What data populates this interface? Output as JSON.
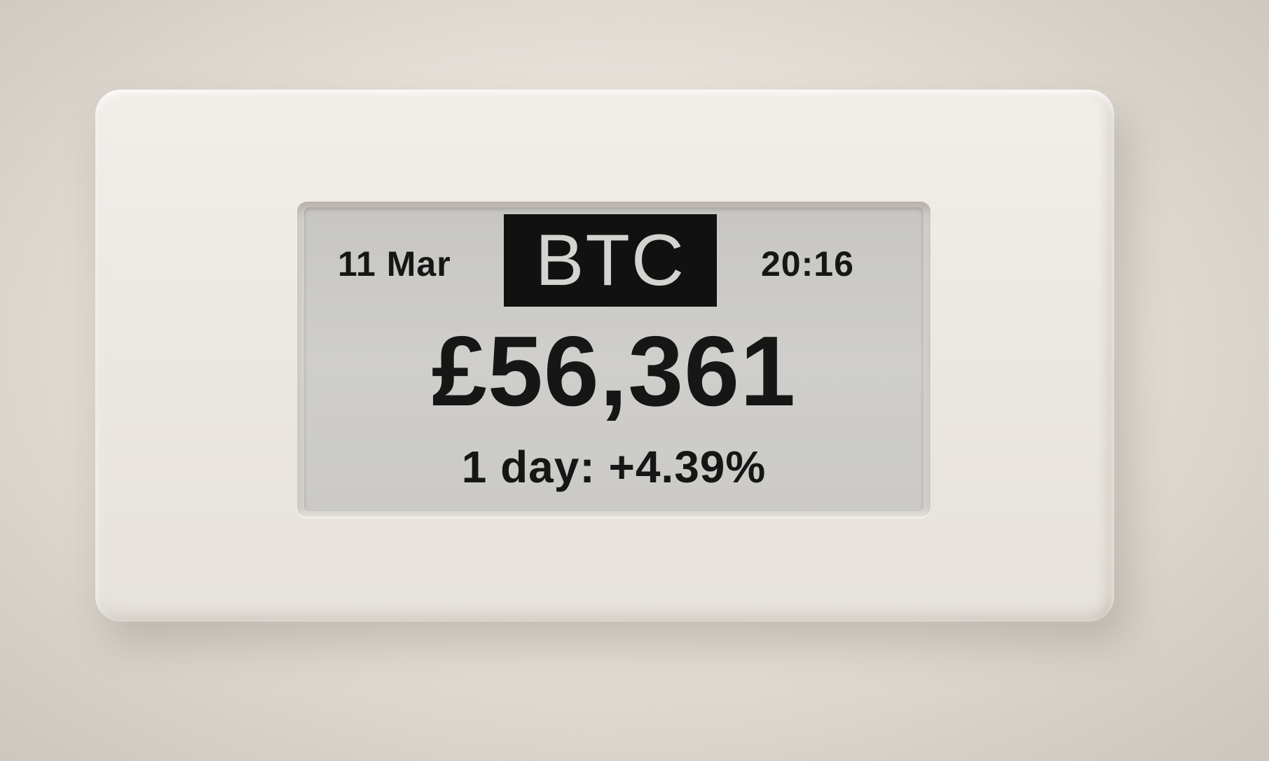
{
  "display": {
    "date": "11 Mar",
    "ticker": "BTC",
    "time": "20:16",
    "price": "£56,361",
    "change": "1 day: +4.39%"
  },
  "colors": {
    "wall": "#e2ddd5",
    "case": "#ece8e2",
    "screen": "#cbcac6",
    "ink": "#161616",
    "ticker_background": "#111111",
    "ticker_text": "#d4d3cf"
  }
}
